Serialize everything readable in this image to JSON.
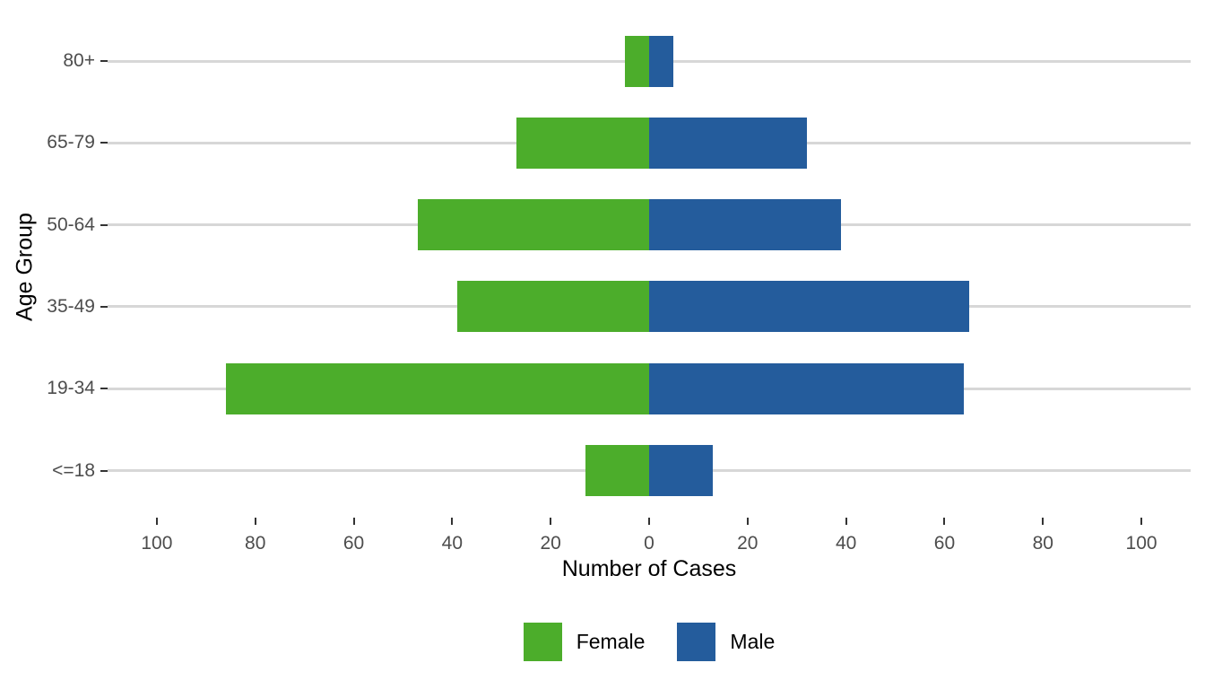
{
  "chart_data": {
    "type": "bar",
    "variant": "diverging-horizontal-pyramid",
    "title": "",
    "xlabel": "Number of Cases",
    "ylabel": "Age Group",
    "categories": [
      "80+",
      "65-79",
      "50-64",
      "35-49",
      "19-34",
      "<=18"
    ],
    "series": [
      {
        "name": "Female",
        "side": "left",
        "color": "#4cad2b",
        "values": [
          5,
          27,
          47,
          39,
          86,
          13
        ]
      },
      {
        "name": "Male",
        "side": "right",
        "color": "#245c9c",
        "values": [
          5,
          32,
          39,
          65,
          64,
          13
        ]
      }
    ],
    "x_ticks": [
      -100,
      -80,
      -60,
      -40,
      -20,
      0,
      20,
      40,
      60,
      80,
      100
    ],
    "x_tick_labels": [
      "100",
      "80",
      "60",
      "40",
      "20",
      "0",
      "20",
      "40",
      "60",
      "80",
      "100"
    ],
    "xlim": [
      -110,
      110
    ],
    "grid": "horizontal-only",
    "gridline_color": "#d7d7d7",
    "tick_color": "#333333",
    "tick_label_color": "#4d4d4d",
    "background_color": "#ffffff",
    "legend_position": "bottom"
  }
}
